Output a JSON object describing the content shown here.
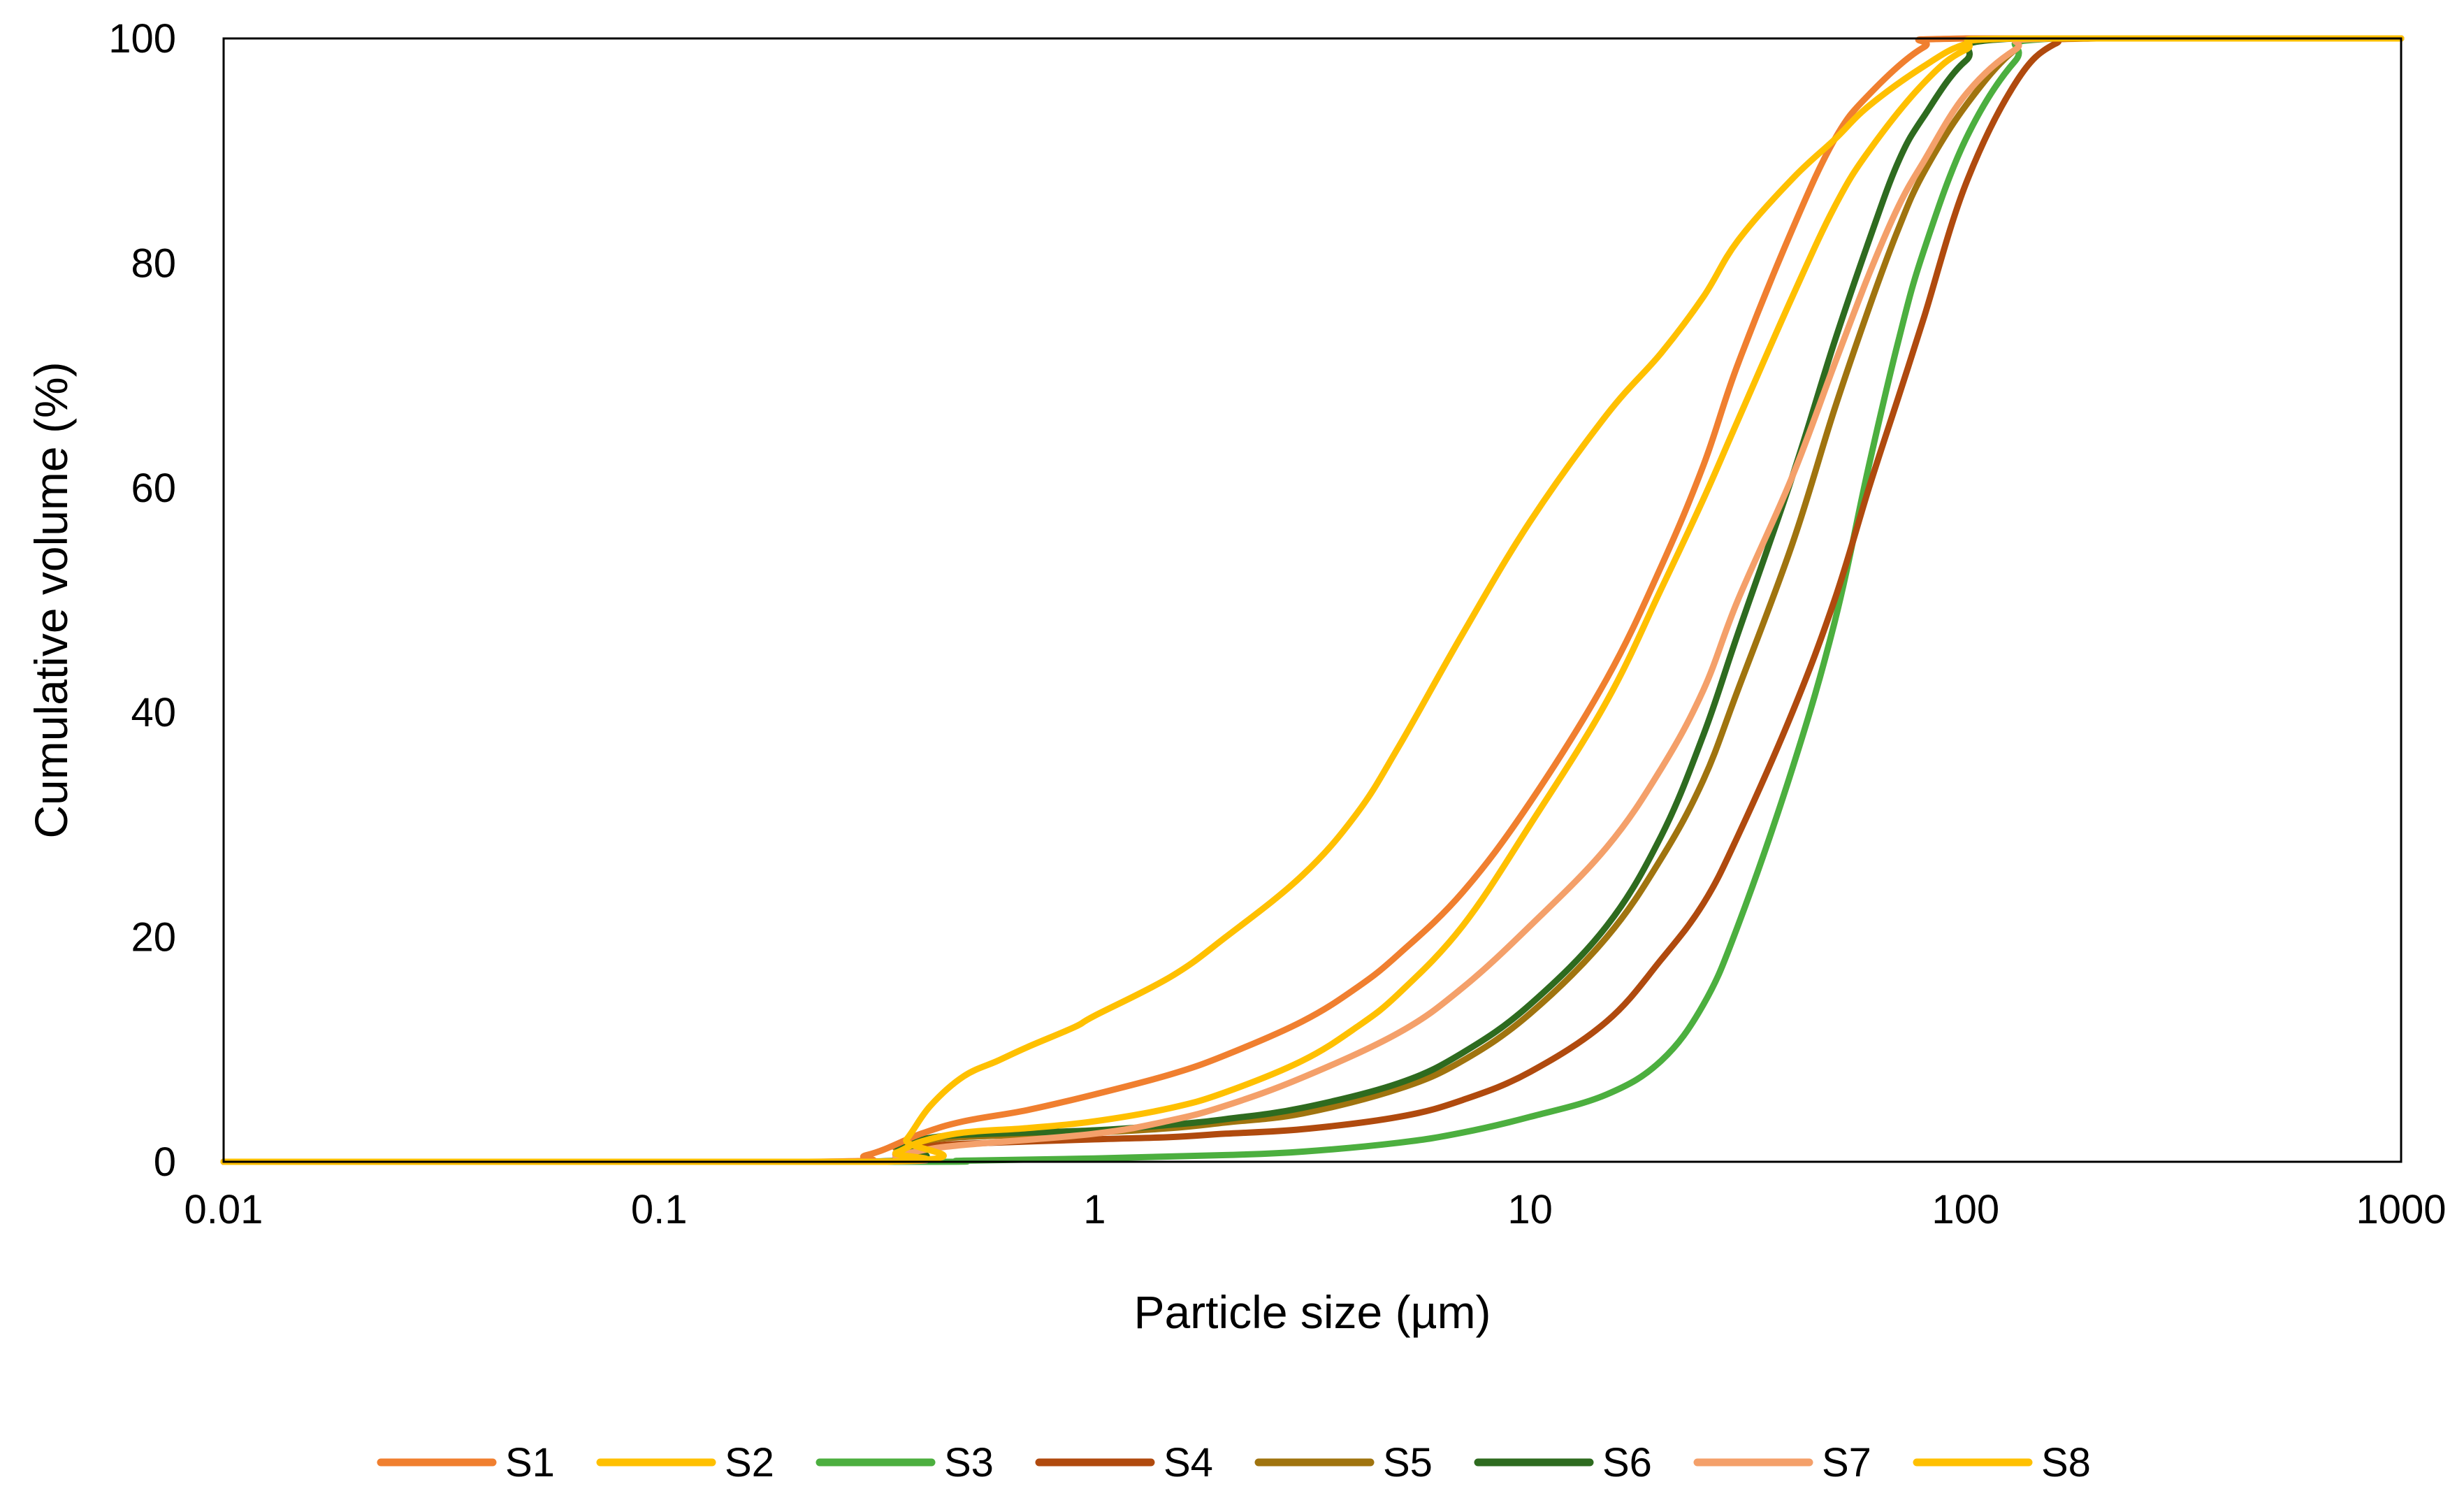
{
  "chart_data": {
    "type": "line",
    "title": "",
    "xlabel": "Particle size (µm)",
    "ylabel": "Cumulative volume (%)",
    "xscale": "log",
    "xlim": [
      0.01,
      1000
    ],
    "ylim": [
      0,
      100
    ],
    "x_ticks": [
      0.01,
      0.1,
      1,
      10,
      100,
      1000
    ],
    "x_tick_labels": [
      "0.01",
      "0.1",
      "1",
      "10",
      "100",
      "1000"
    ],
    "y_ticks": [
      0,
      20,
      40,
      60,
      80,
      100
    ],
    "y_tick_labels": [
      "0",
      "20",
      "40",
      "60",
      "80",
      "100"
    ],
    "grid": false,
    "legend_position": "bottom",
    "series": [
      {
        "name": "S1",
        "color": "#F07F2F",
        "points": [
          [
            0.01,
            0
          ],
          [
            0.22,
            0
          ],
          [
            0.3,
            0.6
          ],
          [
            0.4,
            2.5
          ],
          [
            0.5,
            3.6
          ],
          [
            0.7,
            4.6
          ],
          [
            1,
            6
          ],
          [
            1.5,
            7.8
          ],
          [
            2,
            9.5
          ],
          [
            3,
            12.5
          ],
          [
            4,
            15.5
          ],
          [
            5,
            18.5
          ],
          [
            7,
            24
          ],
          [
            10,
            32
          ],
          [
            15,
            43
          ],
          [
            20,
            53
          ],
          [
            25,
            62
          ],
          [
            30,
            71
          ],
          [
            40,
            83
          ],
          [
            50,
            91
          ],
          [
            60,
            95
          ],
          [
            80,
            99.2
          ],
          [
            100,
            100
          ],
          [
            1000,
            100
          ]
        ]
      },
      {
        "name": "S2",
        "color": "#FFC000",
        "points": [
          [
            0.01,
            0
          ],
          [
            0.3,
            0
          ],
          [
            0.35,
            0.8
          ],
          [
            0.4,
            1.8
          ],
          [
            0.5,
            2.6
          ],
          [
            0.7,
            3
          ],
          [
            1,
            3.6
          ],
          [
            1.5,
            4.8
          ],
          [
            2,
            6.2
          ],
          [
            3,
            9
          ],
          [
            4,
            12
          ],
          [
            5,
            15
          ],
          [
            7,
            21
          ],
          [
            10,
            30
          ],
          [
            15,
            41
          ],
          [
            20,
            51
          ],
          [
            25,
            59
          ],
          [
            30,
            66
          ],
          [
            40,
            77
          ],
          [
            50,
            85
          ],
          [
            60,
            90
          ],
          [
            80,
            96
          ],
          [
            100,
            99
          ],
          [
            130,
            100
          ],
          [
            1000,
            100
          ]
        ]
      },
      {
        "name": "S3",
        "color": "#4CAF3F",
        "points": [
          [
            0.01,
            0
          ],
          [
            0.35,
            0
          ],
          [
            0.5,
            0.1
          ],
          [
            1,
            0.3
          ],
          [
            2,
            0.6
          ],
          [
            3,
            0.9
          ],
          [
            5,
            1.7
          ],
          [
            7,
            2.6
          ],
          [
            10,
            4
          ],
          [
            15,
            6
          ],
          [
            20,
            9
          ],
          [
            25,
            14
          ],
          [
            30,
            21
          ],
          [
            40,
            35
          ],
          [
            50,
            48
          ],
          [
            60,
            62
          ],
          [
            70,
            73
          ],
          [
            80,
            81
          ],
          [
            100,
            91
          ],
          [
            130,
            98
          ],
          [
            160,
            100
          ],
          [
            1000,
            100
          ]
        ]
      },
      {
        "name": "S4",
        "color": "#B04A0E",
        "points": [
          [
            0.01,
            0
          ],
          [
            0.3,
            0
          ],
          [
            0.35,
            0.7
          ],
          [
            0.4,
            1.3
          ],
          [
            0.5,
            1.6
          ],
          [
            1,
            2
          ],
          [
            1.5,
            2.2
          ],
          [
            2,
            2.5
          ],
          [
            3,
            2.9
          ],
          [
            5,
            4
          ],
          [
            7,
            5.5
          ],
          [
            10,
            8
          ],
          [
            15,
            12.5
          ],
          [
            20,
            18
          ],
          [
            25,
            23
          ],
          [
            30,
            29
          ],
          [
            40,
            40
          ],
          [
            50,
            50
          ],
          [
            60,
            60
          ],
          [
            70,
            68
          ],
          [
            80,
            75
          ],
          [
            100,
            87
          ],
          [
            130,
            96
          ],
          [
            160,
            99.5
          ],
          [
            200,
            100
          ],
          [
            1000,
            100
          ]
        ]
      },
      {
        "name": "S5",
        "color": "#A0740F",
        "points": [
          [
            0.01,
            0
          ],
          [
            0.3,
            0
          ],
          [
            0.35,
            1.3
          ],
          [
            0.4,
            1.8
          ],
          [
            0.5,
            2.2
          ],
          [
            1,
            2.6
          ],
          [
            1.5,
            3
          ],
          [
            2,
            3.5
          ],
          [
            3,
            4.3
          ],
          [
            5,
            6.5
          ],
          [
            7,
            9
          ],
          [
            10,
            13.2
          ],
          [
            15,
            20
          ],
          [
            20,
            27
          ],
          [
            25,
            34
          ],
          [
            30,
            42
          ],
          [
            40,
            55
          ],
          [
            50,
            67
          ],
          [
            60,
            76
          ],
          [
            70,
            83
          ],
          [
            80,
            88
          ],
          [
            100,
            94
          ],
          [
            130,
            99
          ],
          [
            160,
            100
          ],
          [
            1000,
            100
          ]
        ]
      },
      {
        "name": "S6",
        "color": "#2E6B1F",
        "points": [
          [
            0.01,
            0
          ],
          [
            0.3,
            0
          ],
          [
            0.35,
            1.5
          ],
          [
            0.4,
            2
          ],
          [
            0.5,
            2.4
          ],
          [
            1,
            2.8
          ],
          [
            1.5,
            3.3
          ],
          [
            2,
            3.8
          ],
          [
            3,
            4.8
          ],
          [
            5,
            7
          ],
          [
            7,
            9.7
          ],
          [
            10,
            14
          ],
          [
            15,
            21
          ],
          [
            20,
            29
          ],
          [
            25,
            38
          ],
          [
            30,
            47
          ],
          [
            40,
            61
          ],
          [
            50,
            73
          ],
          [
            60,
            82
          ],
          [
            70,
            89
          ],
          [
            80,
            93
          ],
          [
            100,
            98
          ],
          [
            130,
            100
          ],
          [
            1000,
            100
          ]
        ]
      },
      {
        "name": "S7",
        "color": "#F4A06A",
        "points": [
          [
            0.01,
            0
          ],
          [
            0.3,
            0
          ],
          [
            0.35,
            0.5
          ],
          [
            0.4,
            1
          ],
          [
            0.5,
            1.5
          ],
          [
            1,
            2.5
          ],
          [
            1.5,
            3.7
          ],
          [
            2,
            5
          ],
          [
            3,
            7.5
          ],
          [
            5,
            11.5
          ],
          [
            7,
            15.5
          ],
          [
            10,
            21
          ],
          [
            15,
            28
          ],
          [
            20,
            35
          ],
          [
            25,
            42
          ],
          [
            30,
            50
          ],
          [
            40,
            61
          ],
          [
            50,
            71
          ],
          [
            60,
            79
          ],
          [
            70,
            85
          ],
          [
            80,
            89
          ],
          [
            100,
            95
          ],
          [
            130,
            99
          ],
          [
            160,
            100
          ],
          [
            1000,
            100
          ]
        ]
      },
      {
        "name": "S8",
        "color": "#FFC000",
        "points": [
          [
            0.01,
            0
          ],
          [
            0.33,
            0
          ],
          [
            0.37,
            2
          ],
          [
            0.42,
            5
          ],
          [
            0.5,
            7.6
          ],
          [
            0.6,
            9
          ],
          [
            0.7,
            10.2
          ],
          [
            0.9,
            12
          ],
          [
            1,
            13
          ],
          [
            1.5,
            16.5
          ],
          [
            2,
            20
          ],
          [
            3,
            25.5
          ],
          [
            4,
            31
          ],
          [
            5,
            37
          ],
          [
            7,
            47
          ],
          [
            10,
            57
          ],
          [
            15,
            66.5
          ],
          [
            20,
            72
          ],
          [
            25,
            77
          ],
          [
            30,
            82
          ],
          [
            40,
            87.5
          ],
          [
            50,
            91
          ],
          [
            60,
            94
          ],
          [
            80,
            97.5
          ],
          [
            100,
            99.5
          ],
          [
            130,
            100
          ],
          [
            1000,
            100
          ]
        ]
      }
    ]
  }
}
